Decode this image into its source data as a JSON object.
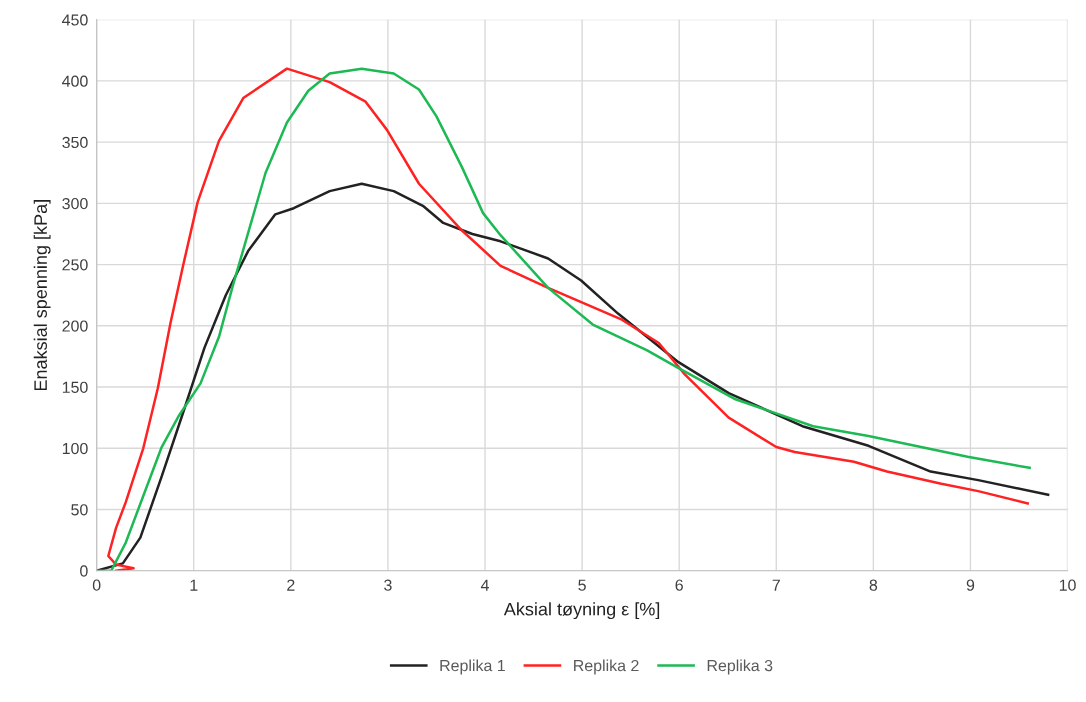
{
  "chart_data": {
    "type": "line",
    "xlabel": "Aksial tøyning ε [%]",
    "ylabel": "Enaksial spenning [kPa]",
    "xlim": [
      0,
      10
    ],
    "xticks": [
      0,
      1,
      2,
      3,
      4,
      5,
      6,
      7,
      8,
      9,
      10
    ],
    "ylim": [
      0,
      450
    ],
    "yticks": [
      0,
      50,
      100,
      150,
      200,
      250,
      300,
      350,
      400,
      450
    ],
    "grid": true,
    "legend": "bottom",
    "marker": "none",
    "line_style": "solid",
    "series": [
      {
        "name": "Replika 1",
        "color": "#222222",
        "x": [
          0,
          0.27,
          0.45,
          0.67,
          0.89,
          1.11,
          1.33,
          1.56,
          1.84,
          2.03,
          2.4,
          2.73,
          3.06,
          3.36,
          3.57,
          3.87,
          4.16,
          4.65,
          4.99,
          5.37,
          5.98,
          6.51,
          7.27,
          7.95,
          8.59,
          9.08,
          9.8
        ],
        "values": [
          0,
          6,
          27,
          77,
          129,
          182,
          225,
          261,
          291,
          296,
          310,
          316,
          310,
          298,
          284,
          275,
          269,
          255,
          237,
          210,
          171,
          145,
          118,
          102,
          81,
          74,
          62
        ]
      },
      {
        "name": "Replika 2",
        "color": "#ff2222",
        "x": [
          0.2,
          0.38,
          0.2,
          0.12,
          0.2,
          0.3,
          0.48,
          0.63,
          0.76,
          0.89,
          1.04,
          1.26,
          1.51,
          1.96,
          2.4,
          2.77,
          2.99,
          3.32,
          3.76,
          4.16,
          4.65,
          5.41,
          5.79,
          6.05,
          6.51,
          7.0,
          7.19,
          7.8,
          8.14,
          8.7,
          9.08,
          9.59
        ],
        "values": [
          0,
          2,
          5,
          12,
          35,
          56,
          100,
          149,
          202,
          249,
          301,
          351,
          386,
          410,
          399,
          383,
          360,
          316,
          278,
          249,
          231,
          205,
          186,
          161,
          125,
          101,
          97,
          89,
          81,
          71,
          65,
          55
        ]
      },
      {
        "name": "Replika 3",
        "color": "#1db954",
        "x": [
          0,
          0.15,
          0.3,
          0.48,
          0.67,
          0.85,
          1.07,
          1.26,
          1.4,
          1.55,
          1.74,
          1.96,
          2.18,
          2.4,
          2.73,
          3.06,
          3.32,
          3.5,
          3.76,
          3.98,
          4.16,
          4.65,
          5.11,
          5.67,
          5.98,
          6.58,
          7.38,
          7.95,
          8.97,
          9.61
        ],
        "values": [
          0,
          0,
          23,
          61,
          101,
          127,
          153,
          191,
          232,
          273,
          325,
          366,
          392,
          406,
          410,
          406,
          393,
          371,
          330,
          292,
          274,
          231,
          201,
          180,
          166,
          140,
          118,
          110,
          93,
          84
        ]
      }
    ]
  }
}
